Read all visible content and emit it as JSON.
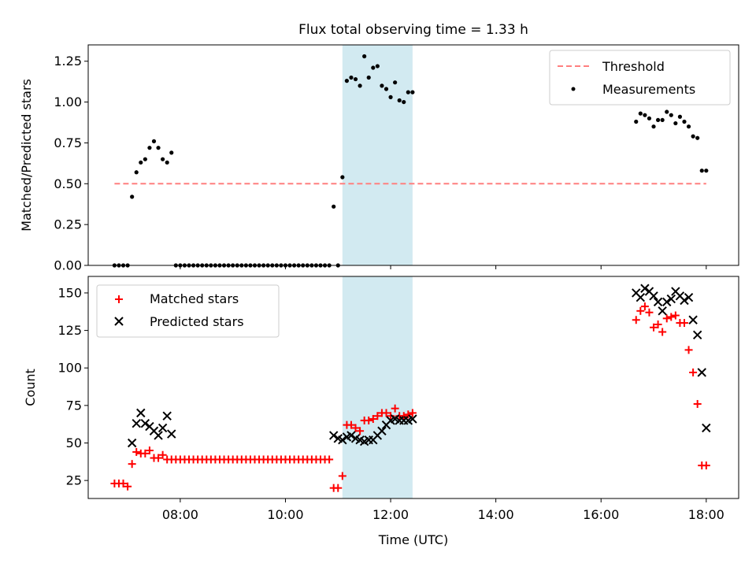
{
  "chart_data": [
    {
      "type": "scatter",
      "title": "Flux total observing time = 1.33 h",
      "xlabel": "",
      "ylabel": "Matched/Predicted stars",
      "xlim": [
        "06:15",
        "18:37"
      ],
      "ylim": [
        0,
        1.35
      ],
      "yticks": [
        0.0,
        0.25,
        0.5,
        0.75,
        1.0,
        1.25
      ],
      "yticklabels": [
        "0.00",
        "0.25",
        "0.50",
        "0.75",
        "1.00",
        "1.25"
      ],
      "xticks": [
        "08:00",
        "10:00",
        "12:00",
        "14:00",
        "16:00",
        "18:00"
      ],
      "grid": false,
      "legend_position": "upper right",
      "shaded_interval": {
        "start": "11:05",
        "end": "12:25",
        "color": "#add8e6"
      },
      "series": [
        {
          "name": "Threshold",
          "style": "dashed-line",
          "color": "#ff7f7f",
          "x": [
            "06:45",
            "18:00"
          ],
          "y": [
            0.5,
            0.5
          ]
        },
        {
          "name": "Measurements",
          "style": "dot",
          "color": "#000000",
          "x": [
            "06:45",
            "06:50",
            "06:55",
            "07:00",
            "07:05",
            "07:10",
            "07:15",
            "07:20",
            "07:25",
            "07:30",
            "07:35",
            "07:40",
            "07:45",
            "07:50",
            "07:55",
            "08:00",
            "08:05",
            "08:10",
            "08:15",
            "08:20",
            "08:25",
            "08:30",
            "08:35",
            "08:40",
            "08:45",
            "08:50",
            "08:55",
            "09:00",
            "09:05",
            "09:10",
            "09:15",
            "09:20",
            "09:25",
            "09:30",
            "09:35",
            "09:40",
            "09:45",
            "09:50",
            "09:55",
            "10:00",
            "10:05",
            "10:10",
            "10:15",
            "10:20",
            "10:25",
            "10:30",
            "10:35",
            "10:40",
            "10:45",
            "10:50",
            "10:55",
            "11:00",
            "11:05",
            "11:10",
            "11:15",
            "11:20",
            "11:25",
            "11:30",
            "11:35",
            "11:40",
            "11:45",
            "11:50",
            "11:55",
            "12:00",
            "12:05",
            "12:10",
            "12:15",
            "12:20",
            "12:25",
            "16:40",
            "16:45",
            "16:50",
            "16:55",
            "17:00",
            "17:05",
            "17:10",
            "17:15",
            "17:20",
            "17:25",
            "17:30",
            "17:35",
            "17:40",
            "17:45",
            "17:50",
            "17:55",
            "18:00"
          ],
          "y": [
            0.0,
            0.0,
            0.0,
            0.0,
            0.42,
            0.57,
            0.63,
            0.65,
            0.72,
            0.76,
            0.72,
            0.65,
            0.63,
            0.69,
            0.0,
            0.0,
            0.0,
            0.0,
            0.0,
            0.0,
            0.0,
            0.0,
            0.0,
            0.0,
            0.0,
            0.0,
            0.0,
            0.0,
            0.0,
            0.0,
            0.0,
            0.0,
            0.0,
            0.0,
            0.0,
            0.0,
            0.0,
            0.0,
            0.0,
            0.0,
            0.0,
            0.0,
            0.0,
            0.0,
            0.0,
            0.0,
            0.0,
            0.0,
            0.0,
            0.0,
            0.36,
            0.0,
            0.54,
            1.13,
            1.15,
            1.14,
            1.1,
            1.28,
            1.15,
            1.21,
            1.22,
            1.1,
            1.08,
            1.03,
            1.12,
            1.01,
            1.0,
            1.06,
            1.06,
            0.88,
            0.93,
            0.92,
            0.9,
            0.85,
            0.89,
            0.89,
            0.94,
            0.92,
            0.87,
            0.91,
            0.88,
            0.85,
            0.79,
            0.78,
            0.58,
            0.58
          ]
        }
      ]
    },
    {
      "type": "scatter",
      "title": "",
      "xlabel": "Time (UTC)",
      "ylabel": "Count",
      "xlim": [
        "06:15",
        "18:37"
      ],
      "ylim": [
        13,
        161
      ],
      "yticks": [
        25,
        50,
        75,
        100,
        125,
        150
      ],
      "yticklabels": [
        "25",
        "50",
        "75",
        "100",
        "125",
        "150"
      ],
      "xticks": [
        "08:00",
        "10:00",
        "12:00",
        "14:00",
        "16:00",
        "18:00"
      ],
      "xticklabels": [
        "08:00",
        "10:00",
        "12:00",
        "14:00",
        "16:00",
        "18:00"
      ],
      "grid": false,
      "legend_position": "upper left",
      "shaded_interval": {
        "start": "11:05",
        "end": "12:25",
        "color": "#add8e6"
      },
      "series": [
        {
          "name": "Matched stars",
          "marker": "+",
          "color": "#ff0000",
          "x": [
            "06:45",
            "06:50",
            "06:55",
            "07:00",
            "07:05",
            "07:10",
            "07:15",
            "07:20",
            "07:25",
            "07:30",
            "07:35",
            "07:40",
            "07:45",
            "07:50",
            "07:55",
            "08:00",
            "08:05",
            "08:10",
            "08:15",
            "08:20",
            "08:25",
            "08:30",
            "08:35",
            "08:40",
            "08:45",
            "08:50",
            "08:55",
            "09:00",
            "09:05",
            "09:10",
            "09:15",
            "09:20",
            "09:25",
            "09:30",
            "09:35",
            "09:40",
            "09:45",
            "09:50",
            "09:55",
            "10:00",
            "10:05",
            "10:10",
            "10:15",
            "10:20",
            "10:25",
            "10:30",
            "10:35",
            "10:40",
            "10:45",
            "10:50",
            "10:55",
            "11:00",
            "11:05",
            "11:10",
            "11:15",
            "11:20",
            "11:25",
            "11:30",
            "11:35",
            "11:40",
            "11:45",
            "11:50",
            "11:55",
            "12:00",
            "12:05",
            "12:10",
            "12:15",
            "12:20",
            "12:25",
            "16:40",
            "16:45",
            "16:50",
            "16:55",
            "17:00",
            "17:05",
            "17:10",
            "17:15",
            "17:20",
            "17:25",
            "17:30",
            "17:35",
            "17:40",
            "17:45",
            "17:50",
            "17:55",
            "18:00"
          ],
          "y": [
            23,
            23,
            23,
            21,
            36,
            44,
            43,
            43,
            45,
            40,
            40,
            42,
            39,
            39,
            39,
            39,
            39,
            39,
            39,
            39,
            39,
            39,
            39,
            39,
            39,
            39,
            39,
            39,
            39,
            39,
            39,
            39,
            39,
            39,
            39,
            39,
            39,
            39,
            39,
            39,
            39,
            39,
            39,
            39,
            39,
            39,
            39,
            39,
            39,
            39,
            20,
            20,
            28,
            62,
            62,
            60,
            58,
            65,
            65,
            66,
            68,
            70,
            70,
            68,
            73,
            68,
            68,
            69,
            70,
            132,
            138,
            141,
            137,
            127,
            129,
            124,
            133,
            134,
            135,
            130,
            130,
            112,
            97,
            76,
            35,
            35
          ]
        },
        {
          "name": "Predicted stars",
          "marker": "x",
          "color": "#000000",
          "x": [
            "07:05",
            "07:10",
            "07:15",
            "07:20",
            "07:25",
            "07:30",
            "07:35",
            "07:40",
            "07:45",
            "07:50",
            "10:55",
            "11:00",
            "11:05",
            "11:10",
            "11:15",
            "11:20",
            "11:25",
            "11:30",
            "11:35",
            "11:40",
            "11:45",
            "11:50",
            "11:55",
            "12:00",
            "12:05",
            "12:10",
            "12:15",
            "12:20",
            "12:25",
            "16:40",
            "16:45",
            "16:50",
            "16:55",
            "17:00",
            "17:05",
            "17:10",
            "17:15",
            "17:20",
            "17:25",
            "17:30",
            "17:35",
            "17:40",
            "17:45",
            "17:50",
            "17:55",
            "18:00"
          ],
          "y": [
            50,
            63,
            70,
            63,
            61,
            58,
            55,
            60,
            68,
            56,
            55,
            53,
            52,
            54,
            55,
            53,
            52,
            51,
            52,
            52,
            55,
            58,
            62,
            65,
            66,
            65,
            65,
            65,
            66,
            150,
            147,
            153,
            151,
            148,
            144,
            138,
            144,
            146,
            151,
            148,
            145,
            147,
            132,
            122,
            97,
            60
          ]
        }
      ]
    }
  ]
}
